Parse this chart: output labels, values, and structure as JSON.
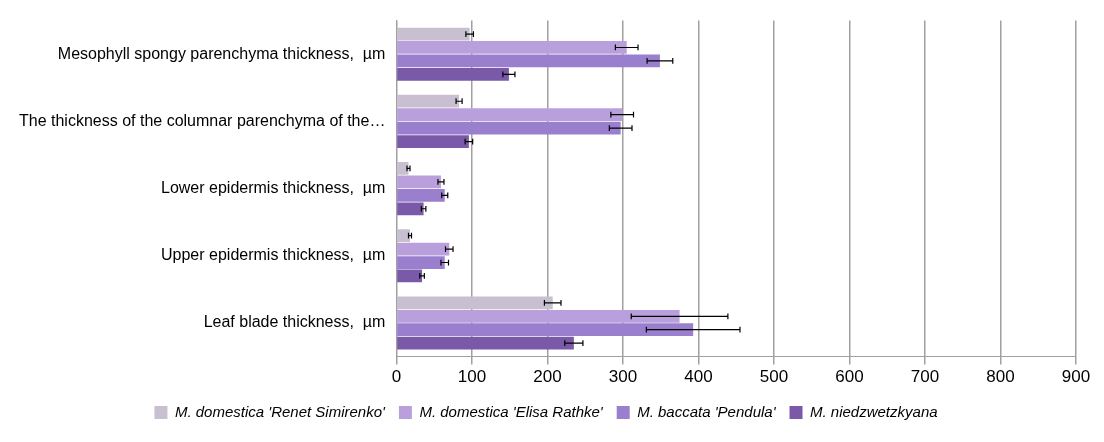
{
  "chart_data": {
    "type": "bar",
    "orientation": "horizontal",
    "categories": [
      "Mesophyll spongy parenchyma thickness,  µm",
      "The thickness of the columnar parenchyma of the…",
      "Lower epidermis thickness,  µm",
      "Upper epidermis thickness,  µm",
      "Leaf blade thickness,  µm"
    ],
    "series": [
      {
        "name": "M. domestica 'Renet Simirenko'",
        "color": "#c8c0d0",
        "values": [
          97,
          83,
          16,
          18,
          207
        ],
        "errors": [
          5,
          4,
          2,
          2,
          11
        ]
      },
      {
        "name": "M. domestica 'Elisa Rathke'",
        "color": "#b9a0dc",
        "values": [
          305,
          299,
          59,
          70,
          375
        ],
        "errors": [
          15,
          15,
          4,
          5,
          64
        ]
      },
      {
        "name": "M. baccata 'Pendula'",
        "color": "#9b7fcf",
        "values": [
          349,
          297,
          64,
          64,
          393
        ],
        "errors": [
          17,
          15,
          4,
          5,
          62
        ]
      },
      {
        "name": "M. niedzwetzkyana",
        "color": "#7a5aa8",
        "values": [
          149,
          96,
          36,
          34,
          235
        ],
        "errors": [
          8,
          5,
          3,
          3,
          12
        ]
      }
    ],
    "xlim": [
      0,
      900
    ],
    "xticks": [
      0,
      100,
      200,
      300,
      400,
      500,
      600,
      700,
      800,
      900
    ],
    "grid": "x",
    "legend": "bottom"
  }
}
